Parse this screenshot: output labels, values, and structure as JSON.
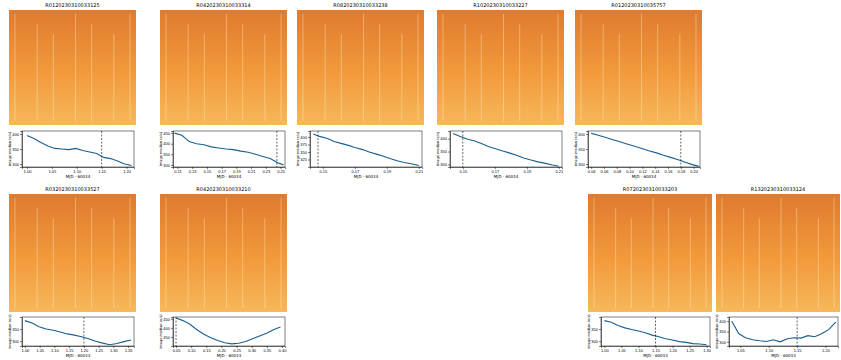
{
  "chart_data": [
    {
      "type": "line",
      "title": "R0120230310033125",
      "x_label": "MJD - 60034",
      "y_label": "image median (e/s)",
      "color": "#1a5f8e",
      "x": [
        1.0,
        1.014,
        1.028,
        1.042,
        1.056,
        1.07,
        1.084,
        1.098,
        1.112,
        1.126,
        1.14,
        1.154,
        1.168,
        1.182,
        1.196,
        1.21
      ],
      "values": [
        395,
        385,
        372,
        360,
        352,
        350,
        348,
        352,
        345,
        340,
        335,
        322,
        318,
        310,
        300,
        295
      ],
      "xlim": [
        0.99,
        1.215
      ],
      "ylim": [
        290,
        410
      ],
      "xticks": [
        {
          "value": 1,
          "label": "1.00"
        },
        1.05,
        {
          "value": 1.1,
          "label": "1.10"
        },
        1.15,
        {
          "value": 1.2,
          "label": "1.20"
        }
      ],
      "yticks": [
        300,
        350,
        400
      ],
      "vline": 1.15
    },
    {
      "type": "line",
      "title": "R0420230310033314",
      "x_label": "MJD - 60034",
      "y_label": "image median (e/s)",
      "color": "#1a5f8e",
      "x": [
        0.106,
        0.116,
        0.126,
        0.136,
        0.146,
        0.156,
        0.166,
        0.176,
        0.186,
        0.196,
        0.206,
        0.216,
        0.226,
        0.236,
        0.246,
        0.254
      ],
      "values": [
        450,
        440,
        410,
        400,
        395,
        385,
        380,
        375,
        372,
        365,
        360,
        350,
        340,
        330,
        310,
        300
      ],
      "xlim": [
        0.104,
        0.256
      ],
      "ylim": [
        290,
        460
      ],
      "xticks": [
        0.11,
        0.13,
        0.15,
        0.17,
        0.19,
        0.21,
        0.23,
        0.25
      ],
      "yticks": [
        300,
        350,
        400,
        450
      ],
      "vline": 0.245
    },
    {
      "type": "line",
      "title": "R0820230310033238",
      "x_label": "MJD - 60034",
      "y_label": "image median (e/s)",
      "color": "#1a5f8e",
      "x": [
        0.144,
        0.148,
        0.153,
        0.157,
        0.162,
        0.166,
        0.17,
        0.175,
        0.179,
        0.184,
        0.188,
        0.192,
        0.197,
        0.201,
        0.206,
        0.21
      ],
      "values": [
        410,
        402,
        395,
        385,
        378,
        372,
        365,
        358,
        350,
        342,
        336,
        328,
        320,
        315,
        310,
        305
      ],
      "xlim": [
        0.142,
        0.212
      ],
      "ylim": [
        300,
        420
      ],
      "xticks": [
        0.15,
        0.17,
        0.19,
        0.21
      ],
      "yticks": [
        325,
        350,
        375,
        400
      ],
      "vline": 0.147
    },
    {
      "type": "line",
      "title": "R1020230310033227",
      "x_label": "MJD - 60034",
      "y_label": "image median (e/s)",
      "color": "#1a5f8e",
      "x": [
        0.144,
        0.148,
        0.153,
        0.157,
        0.162,
        0.166,
        0.17,
        0.175,
        0.179,
        0.184,
        0.188,
        0.192,
        0.197,
        0.201,
        0.206,
        0.21
      ],
      "values": [
        420,
        410,
        398,
        392,
        380,
        370,
        362,
        352,
        345,
        335,
        325,
        318,
        310,
        305,
        298,
        293
      ],
      "xlim": [
        0.142,
        0.212
      ],
      "ylim": [
        290,
        430
      ],
      "xticks": [
        0.15,
        0.17,
        0.19,
        0.21
      ],
      "yticks": [
        300,
        350,
        400
      ],
      "vline": 0.15
    },
    {
      "type": "line",
      "title": "R0120230310035757",
      "x_label": "MJD - 60034",
      "y_label": "image median (e/s)",
      "color": "#1a5f8e",
      "x": [
        0.04,
        0.051,
        0.063,
        0.074,
        0.085,
        0.097,
        0.108,
        0.119,
        0.13,
        0.142,
        0.153,
        0.164,
        0.176,
        0.187,
        0.198,
        0.208
      ],
      "values": [
        402,
        396,
        388,
        381,
        374,
        366,
        359,
        352,
        344,
        337,
        329,
        322,
        314,
        306,
        298,
        292
      ],
      "xlim": [
        0.035,
        0.21
      ],
      "ylim": [
        290,
        410
      ],
      "xticks": [
        0.04,
        0.06,
        0.08,
        {
          "value": 0.1,
          "label": "0.10"
        },
        0.12,
        0.14,
        0.16,
        0.18,
        {
          "value": 0.2,
          "label": "0.20"
        }
      ],
      "yticks": [
        300,
        350,
        400
      ],
      "vline": 0.18
    },
    {
      "type": "line",
      "title": "R0320230310033527",
      "x_label": "MJD - 60033",
      "y_label": "image median (e/s)",
      "color": "#1a5f8e",
      "x": [
        1.0,
        1.024,
        1.048,
        1.072,
        1.096,
        1.12,
        1.144,
        1.168,
        1.192,
        1.216,
        1.24,
        1.264,
        1.288,
        1.312,
        1.336,
        1.36
      ],
      "values": [
        385,
        375,
        360,
        350,
        345,
        338,
        330,
        325,
        318,
        310,
        300,
        292,
        285,
        290,
        298,
        305
      ],
      "xlim": [
        0.99,
        1.37
      ],
      "ylim": [
        280,
        400
      ],
      "xticks": [
        {
          "value": 1,
          "label": "1.00"
        },
        1.05,
        {
          "value": 1.1,
          "label": "1.10"
        },
        1.15,
        {
          "value": 1.2,
          "label": "1.20"
        },
        1.25,
        {
          "value": 1.3,
          "label": "1.30"
        },
        1.35
      ],
      "yticks": [
        300,
        350
      ],
      "vline": 1.2
    },
    {
      "type": "line",
      "title": "R0420230310033210",
      "x_label": "MJD - 60033",
      "y_label": "image median (e/s)",
      "color": "#1a5f8e",
      "x": [
        0.05,
        0.073,
        0.096,
        0.119,
        0.142,
        0.165,
        0.188,
        0.211,
        0.234,
        0.257,
        0.28,
        0.303,
        0.326,
        0.349,
        0.372,
        0.395
      ],
      "values": [
        455,
        440,
        420,
        390,
        365,
        345,
        330,
        318,
        312,
        315,
        325,
        340,
        355,
        370,
        390,
        405
      ],
      "xlim": [
        0.04,
        0.41
      ],
      "ylim": [
        300,
        460
      ],
      "xticks": [
        0.05,
        {
          "value": 0.1,
          "label": "0.10"
        },
        0.15,
        {
          "value": 0.2,
          "label": "0.20"
        },
        0.25,
        {
          "value": 0.3,
          "label": "0.30"
        },
        0.35,
        {
          "value": 0.4,
          "label": "0.40"
        }
      ],
      "yticks": [
        350,
        400,
        450
      ],
      "vline": 0.05
    },
    {
      "type": "line",
      "title": "R0720230310033203",
      "x_label": "MJD - 60033",
      "y_label": "image median (e/s)",
      "color": "#1a5f8e",
      "x": [
        1.0,
        1.02,
        1.04,
        1.06,
        1.08,
        1.1,
        1.12,
        1.14,
        1.16,
        1.18,
        1.2,
        1.22,
        1.24,
        1.26,
        1.28,
        1.3
      ],
      "values": [
        385,
        378,
        365,
        355,
        348,
        342,
        335,
        325,
        318,
        310,
        305,
        298,
        295,
        290,
        288,
        285
      ],
      "xlim": [
        0.99,
        1.31
      ],
      "ylim": [
        280,
        400
      ],
      "xticks": [
        {
          "value": 1,
          "label": "1.00"
        },
        1.05,
        {
          "value": 1.1,
          "label": "1.10"
        },
        1.15,
        {
          "value": 1.2,
          "label": "1.20"
        },
        1.25,
        {
          "value": 1.3,
          "label": "1.30"
        }
      ],
      "yticks": [
        300,
        350
      ],
      "vline": 1.15
    },
    {
      "type": "line",
      "title": "R1320230310033124",
      "x_label": "MJD - 60033",
      "y_label": "image median (e/s)",
      "color": "#1a5f8e",
      "x": [
        1.035,
        1.047,
        1.059,
        1.072,
        1.084,
        1.096,
        1.108,
        1.12,
        1.133,
        1.145,
        1.157,
        1.169,
        1.181,
        1.194,
        1.206,
        1.218
      ],
      "values": [
        400,
        340,
        320,
        310,
        305,
        302,
        310,
        300,
        315,
        320,
        318,
        330,
        325,
        340,
        360,
        395
      ],
      "xlim": [
        1.03,
        1.222
      ],
      "ylim": [
        280,
        420
      ],
      "xticks": [
        1.05,
        {
          "value": 1.1,
          "label": "1.10"
        },
        1.15,
        {
          "value": 1.2,
          "label": "1.20"
        }
      ],
      "yticks": [
        300,
        350,
        400
      ],
      "vline": 1.15
    }
  ]
}
